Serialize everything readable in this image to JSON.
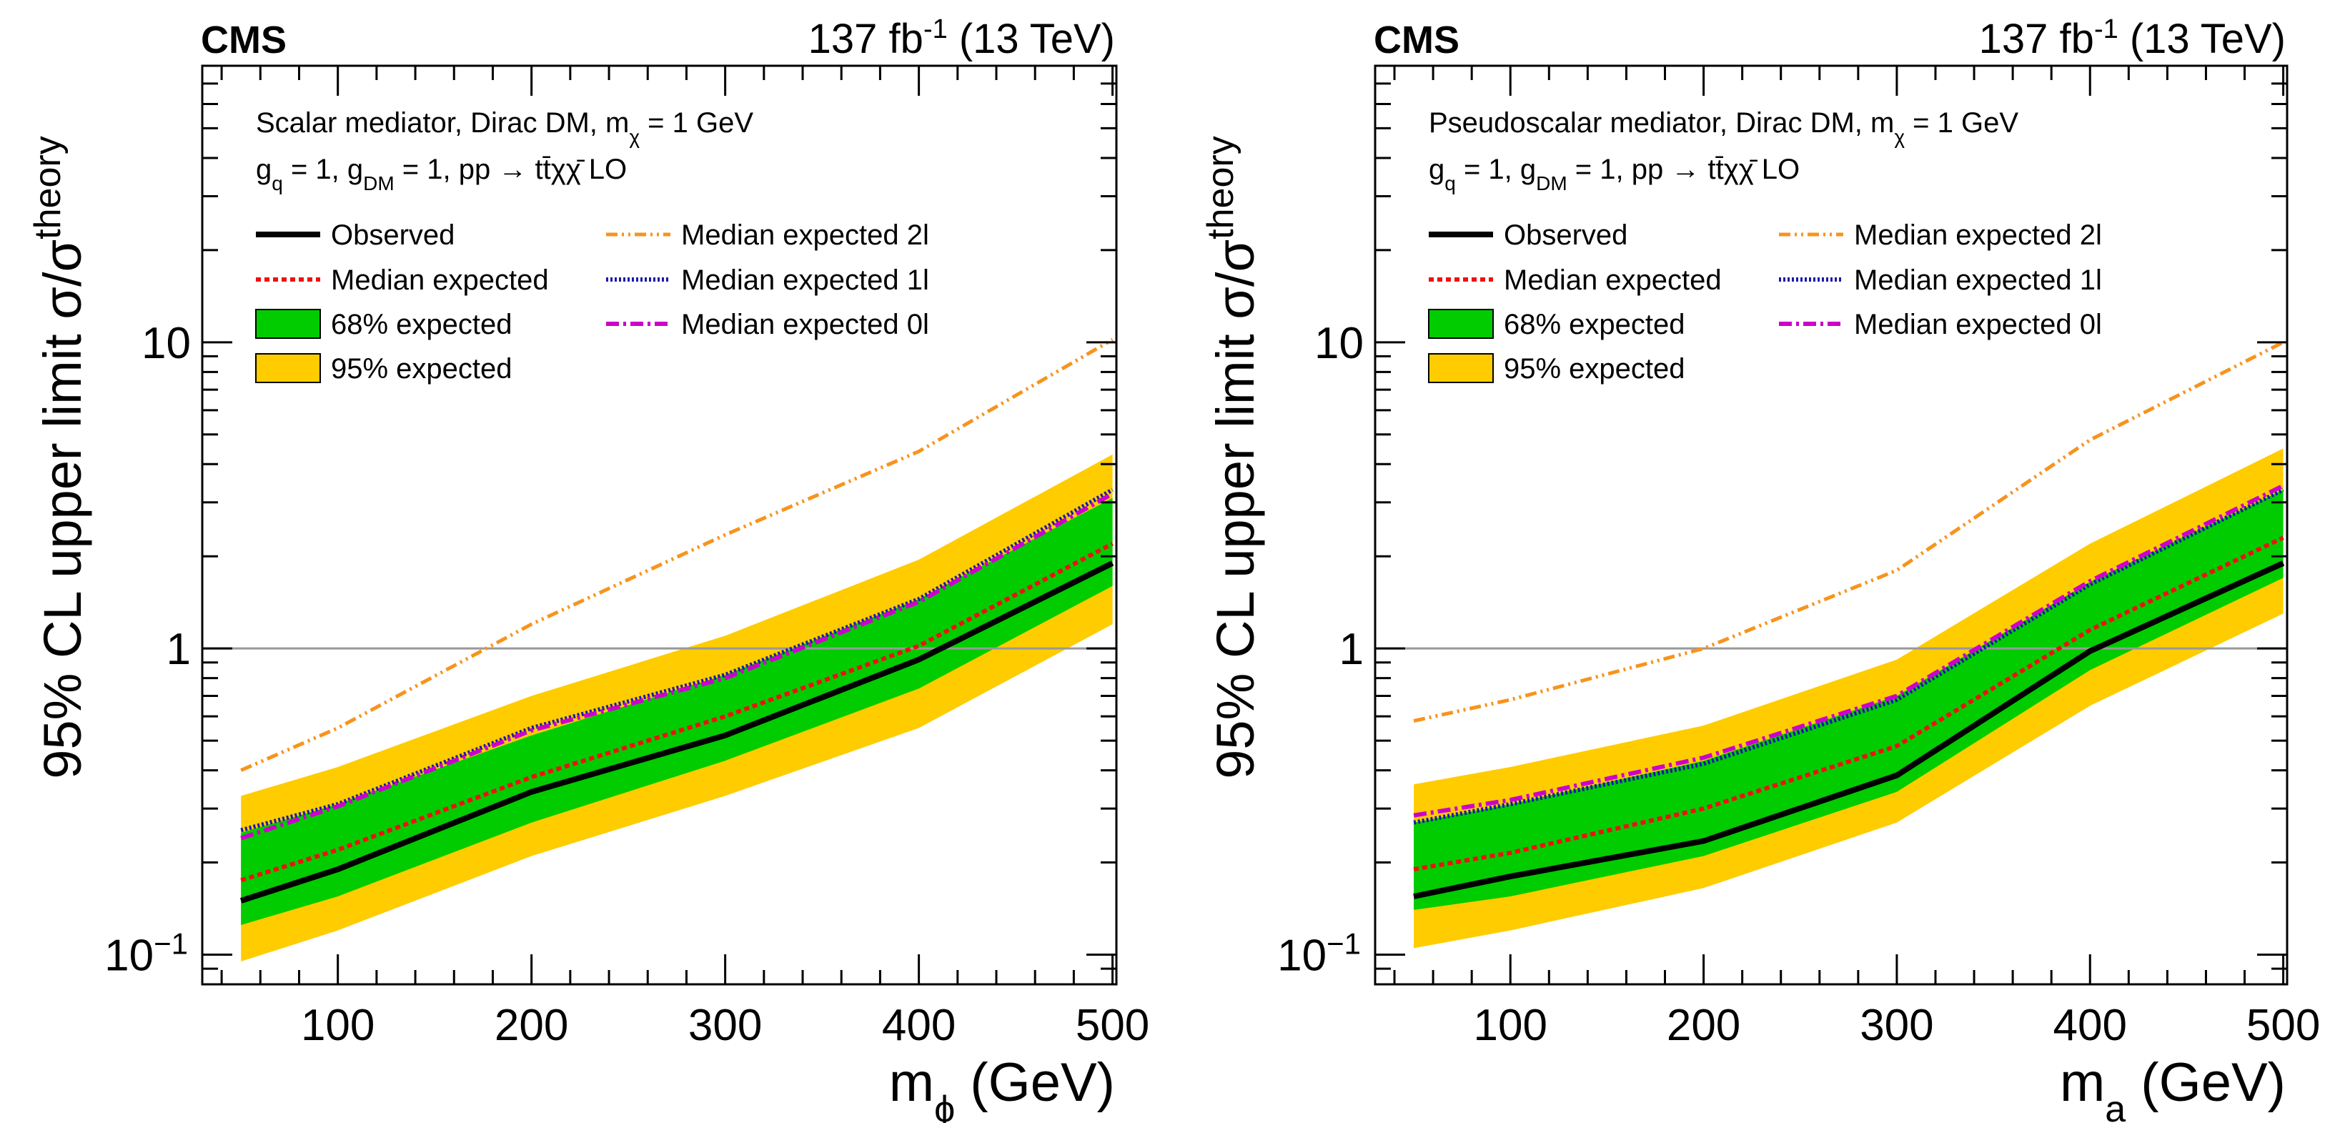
{
  "chart_data": [
    {
      "type": "line",
      "experiment": "CMS",
      "lumi": {
        "value": "137 fb",
        "exp": "-1",
        "energy": "(13 TeV)"
      },
      "desc1": {
        "pre": "Scalar mediator, Dirac DM, m",
        "sub": "χ",
        "post": " = 1 GeV"
      },
      "desc2": {
        "p1": "g",
        "s1": "q",
        "p2": " = 1, g",
        "s2": "DM",
        "p3": " = 1, pp → tt̄χχ̄  LO"
      },
      "ylabel": {
        "main": "95% CL upper limit σ/σ",
        "sub": "theory"
      },
      "xlabel": {
        "main": "m",
        "sub": "ϕ",
        "post": " (GeV)"
      },
      "xlim": [
        30,
        502
      ],
      "ylim": [
        0.08,
        80
      ],
      "log_y": true,
      "reference_line": 1,
      "x_ticks": [
        100,
        200,
        300,
        400,
        500
      ],
      "x": [
        50,
        100,
        200,
        300,
        400,
        500
      ],
      "band95": {
        "name": "95% expected",
        "color": "#ffcc00",
        "lower": [
          0.095,
          0.12,
          0.21,
          0.33,
          0.55,
          1.2
        ],
        "upper": [
          0.33,
          0.41,
          0.7,
          1.1,
          1.95,
          4.3
        ]
      },
      "band68": {
        "name": "68% expected",
        "color": "#00cc00",
        "lower": [
          0.125,
          0.155,
          0.27,
          0.43,
          0.74,
          1.6
        ],
        "upper": [
          0.25,
          0.31,
          0.52,
          0.82,
          1.45,
          3.1
        ]
      },
      "series": [
        {
          "name": "Observed",
          "color": "#000000",
          "style": "solid",
          "values": [
            0.15,
            0.19,
            0.34,
            0.52,
            0.92,
            1.9
          ]
        },
        {
          "name": "Median expected",
          "color": "#ee1111",
          "style": "dotted",
          "values": [
            0.175,
            0.22,
            0.38,
            0.6,
            1.02,
            2.2
          ]
        },
        {
          "name": "Median expected 2l",
          "color": "#f7941d",
          "style": "dashdotdot",
          "values": [
            0.4,
            0.55,
            1.2,
            2.35,
            4.4,
            10.2
          ]
        },
        {
          "name": "Median expected 1l",
          "color": "#1a1aa6",
          "style": "dense-dotted",
          "values": [
            0.255,
            0.31,
            0.55,
            0.82,
            1.45,
            3.3
          ]
        },
        {
          "name": "Median expected 0l",
          "color": "#cc00cc",
          "style": "dashdot",
          "values": [
            0.24,
            0.305,
            0.54,
            0.8,
            1.42,
            3.2
          ]
        }
      ]
    },
    {
      "type": "line",
      "experiment": "CMS",
      "lumi": {
        "value": "137 fb",
        "exp": "-1",
        "energy": "(13 TeV)"
      },
      "desc1": {
        "pre": "Pseudoscalar mediator, Dirac DM, m",
        "sub": "χ",
        "post": " = 1 GeV"
      },
      "desc2": {
        "p1": "g",
        "s1": "q",
        "p2": " = 1, g",
        "s2": "DM",
        "p3": " = 1, pp → tt̄χχ̄  LO"
      },
      "ylabel": {
        "main": "95% CL upper limit σ/σ",
        "sub": "theory"
      },
      "xlabel": {
        "main": "m",
        "sub": "a",
        "post": " (GeV)"
      },
      "xlim": [
        30,
        502
      ],
      "ylim": [
        0.08,
        80
      ],
      "log_y": true,
      "reference_line": 1,
      "x_ticks": [
        100,
        200,
        300,
        400,
        500
      ],
      "x": [
        50,
        100,
        200,
        300,
        400,
        500
      ],
      "band95": {
        "name": "95% expected",
        "color": "#ffcc00",
        "lower": [
          0.105,
          0.12,
          0.165,
          0.27,
          0.65,
          1.3
        ],
        "upper": [
          0.36,
          0.41,
          0.56,
          0.92,
          2.2,
          4.5
        ]
      },
      "band68": {
        "name": "68% expected",
        "color": "#00cc00",
        "lower": [
          0.14,
          0.155,
          0.21,
          0.34,
          0.85,
          1.7
        ],
        "upper": [
          0.27,
          0.31,
          0.43,
          0.7,
          1.65,
          3.3
        ]
      },
      "series": [
        {
          "name": "Observed",
          "color": "#000000",
          "style": "solid",
          "values": [
            0.155,
            0.18,
            0.235,
            0.385,
            0.98,
            1.9
          ]
        },
        {
          "name": "Median expected",
          "color": "#ee1111",
          "style": "dotted",
          "values": [
            0.19,
            0.215,
            0.3,
            0.48,
            1.15,
            2.3
          ]
        },
        {
          "name": "Median expected 2l",
          "color": "#f7941d",
          "style": "dashdotdot",
          "values": [
            0.58,
            0.68,
            1.0,
            1.8,
            4.8,
            10.0
          ]
        },
        {
          "name": "Median expected 1l",
          "color": "#1a1aa6",
          "style": "dense-dotted",
          "values": [
            0.27,
            0.31,
            0.42,
            0.68,
            1.62,
            3.3
          ]
        },
        {
          "name": "Median expected 0l",
          "color": "#cc00cc",
          "style": "dashdot",
          "values": [
            0.285,
            0.32,
            0.44,
            0.7,
            1.66,
            3.4
          ]
        }
      ]
    }
  ]
}
